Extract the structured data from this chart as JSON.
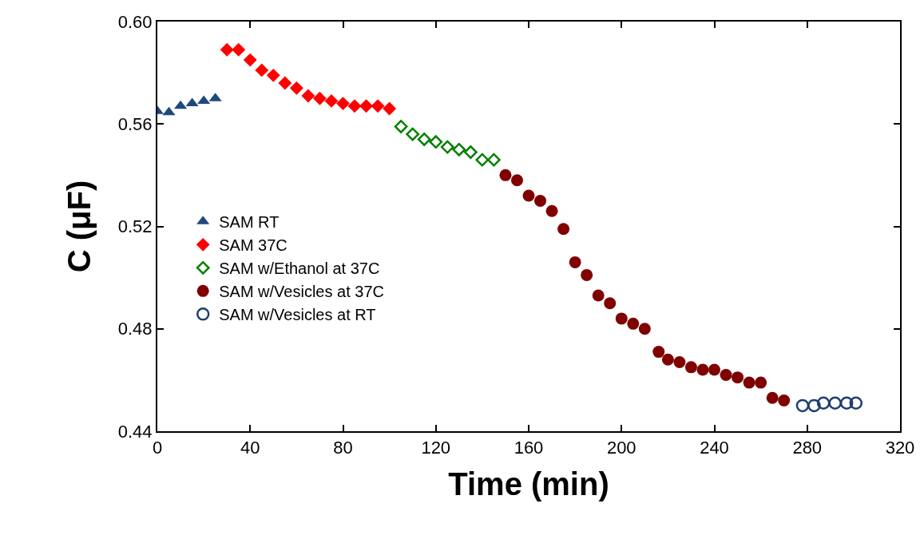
{
  "chart_data": {
    "type": "scatter",
    "xlabel": "Time (min)",
    "ylabel": "C (μF)",
    "xlim": [
      0,
      320
    ],
    "xticks": [
      0,
      40,
      80,
      120,
      160,
      200,
      240,
      280,
      320
    ],
    "ylim": [
      0.44,
      0.6
    ],
    "yticks": [
      {
        "value": 0.44,
        "label": "0.44"
      },
      {
        "value": 0.48,
        "label": "0.48"
      },
      {
        "value": 0.52,
        "label": "0.52"
      },
      {
        "value": 0.56,
        "label": "0.56"
      },
      {
        "value": 0.6,
        "label": "0.60"
      }
    ],
    "grid": false,
    "legend": "left",
    "series": [
      {
        "name": "SAM RT",
        "color": "#1f497d",
        "marker": "triangle",
        "x": [
          0,
          5,
          10,
          15,
          20,
          25
        ],
        "values": [
          0.565,
          0.5645,
          0.567,
          0.568,
          0.569,
          0.57
        ]
      },
      {
        "name": "SAM 37C",
        "color": "#ff0000",
        "marker": "diamond",
        "x": [
          30,
          35,
          40,
          45,
          50,
          55,
          60,
          65,
          70,
          75,
          80,
          85,
          90,
          95,
          100
        ],
        "values": [
          0.589,
          0.589,
          0.585,
          0.581,
          0.579,
          0.576,
          0.574,
          0.571,
          0.57,
          0.569,
          0.568,
          0.567,
          0.567,
          0.567,
          0.566
        ]
      },
      {
        "name": "SAM w/Ethanol at 37C",
        "color": "#008000",
        "marker": "diamond-open",
        "x": [
          105,
          110,
          115,
          120,
          125,
          130,
          135,
          140,
          145
        ],
        "values": [
          0.559,
          0.556,
          0.554,
          0.553,
          0.551,
          0.55,
          0.549,
          0.546,
          0.546
        ]
      },
      {
        "name": "SAM w/Vesicles at 37C",
        "color": "#800000",
        "marker": "circle",
        "x": [
          150,
          155,
          160,
          165,
          170,
          175,
          180,
          185,
          190,
          195,
          200,
          205,
          210,
          216,
          220,
          225,
          230,
          235,
          240,
          245,
          250,
          255,
          260,
          265,
          270
        ],
        "values": [
          0.54,
          0.538,
          0.532,
          0.53,
          0.526,
          0.519,
          0.506,
          0.501,
          0.493,
          0.49,
          0.484,
          0.482,
          0.48,
          0.471,
          0.468,
          0.467,
          0.465,
          0.464,
          0.464,
          0.462,
          0.461,
          0.459,
          0.459,
          0.453,
          0.452
        ]
      },
      {
        "name": "SAM w/Vesicles at RT",
        "color": "#1f3f6f",
        "marker": "circle-open",
        "x": [
          278,
          283,
          287,
          292,
          297,
          301
        ],
        "values": [
          0.45,
          0.45,
          0.451,
          0.451,
          0.451,
          0.451
        ]
      }
    ]
  }
}
